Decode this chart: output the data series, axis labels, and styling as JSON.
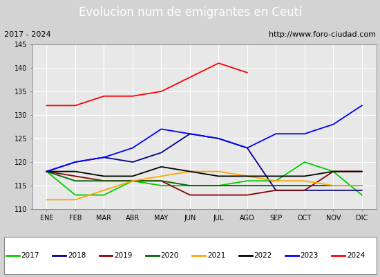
{
  "title": "Evolucion num de emigrantes en Ceutí",
  "subtitle_left": "2017 - 2024",
  "subtitle_right": "http://www.foro-ciudad.com",
  "months": [
    "ENE",
    "FEB",
    "MAR",
    "ABR",
    "MAY",
    "JUN",
    "JUL",
    "AGO",
    "SEP",
    "OCT",
    "NOV",
    "DIC"
  ],
  "ylim": [
    110,
    145
  ],
  "yticks": [
    110,
    115,
    120,
    125,
    130,
    135,
    140,
    145
  ],
  "series": {
    "2017": {
      "color": "#00cc00",
      "values": [
        118,
        113,
        113,
        116,
        115,
        115,
        115,
        116,
        116,
        120,
        118,
        113
      ]
    },
    "2018": {
      "color": "#00008b",
      "values": [
        118,
        120,
        121,
        120,
        122,
        126,
        125,
        123,
        114,
        114,
        114,
        114
      ]
    },
    "2019": {
      "color": "#8b0000",
      "values": [
        118,
        117,
        116,
        116,
        116,
        113,
        113,
        113,
        114,
        114,
        118,
        118
      ]
    },
    "2020": {
      "color": "#006400",
      "values": [
        118,
        116,
        116,
        116,
        116,
        115,
        115,
        115,
        115,
        115,
        115,
        115
      ]
    },
    "2021": {
      "color": "#ffa500",
      "values": [
        112,
        112,
        114,
        116,
        117,
        118,
        118,
        117,
        116,
        116,
        115,
        115
      ]
    },
    "2022": {
      "color": "#000000",
      "values": [
        118,
        118,
        117,
        117,
        119,
        118,
        117,
        117,
        117,
        117,
        118,
        118
      ]
    },
    "2023": {
      "color": "#0000ff",
      "values": [
        118,
        120,
        121,
        123,
        127,
        126,
        125,
        123,
        126,
        126,
        128,
        132
      ]
    },
    "2024": {
      "color": "#ff0000",
      "values": [
        132,
        132,
        134,
        134,
        135,
        138,
        141,
        139,
        null,
        null,
        null,
        null
      ]
    }
  },
  "title_bg_color": "#4472c4",
  "title_color": "#ffffff",
  "subtitle_bg_color": "#d3d3d3",
  "plot_bg_color": "#e8e8e8",
  "grid_color": "#ffffff",
  "title_fontsize": 12,
  "subtitle_fontsize": 8,
  "tick_fontsize": 7,
  "legend_fontsize": 7.5
}
